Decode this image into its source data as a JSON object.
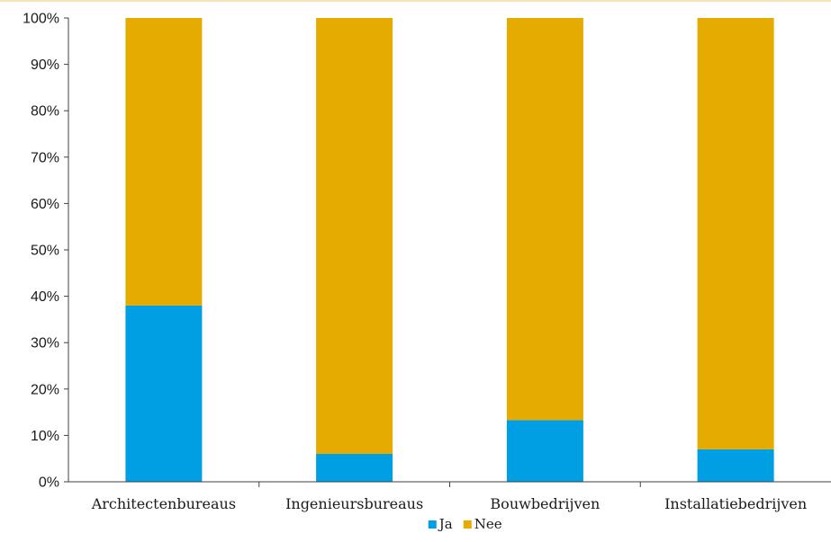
{
  "chart_data": {
    "type": "bar",
    "stacked": true,
    "percent": true,
    "categories": [
      "Architectenbureaus",
      "Ingenieursbureaus",
      "Bouwbedrijven",
      "Installatiebedrijven"
    ],
    "series": [
      {
        "name": "Ja",
        "color": "#009fe3",
        "values": [
          38,
          6,
          13.3,
          7
        ]
      },
      {
        "name": "Nee",
        "color": "#e6ab00",
        "values": [
          62,
          94,
          86.7,
          93
        ]
      }
    ],
    "ylim": [
      0,
      100
    ],
    "yticks": [
      "0%",
      "10%",
      "20%",
      "30%",
      "40%",
      "50%",
      "60%",
      "70%",
      "80%",
      "90%",
      "100%"
    ],
    "title": "",
    "xlabel": "",
    "ylabel": "",
    "grid": false,
    "legend_position": "bottom"
  }
}
